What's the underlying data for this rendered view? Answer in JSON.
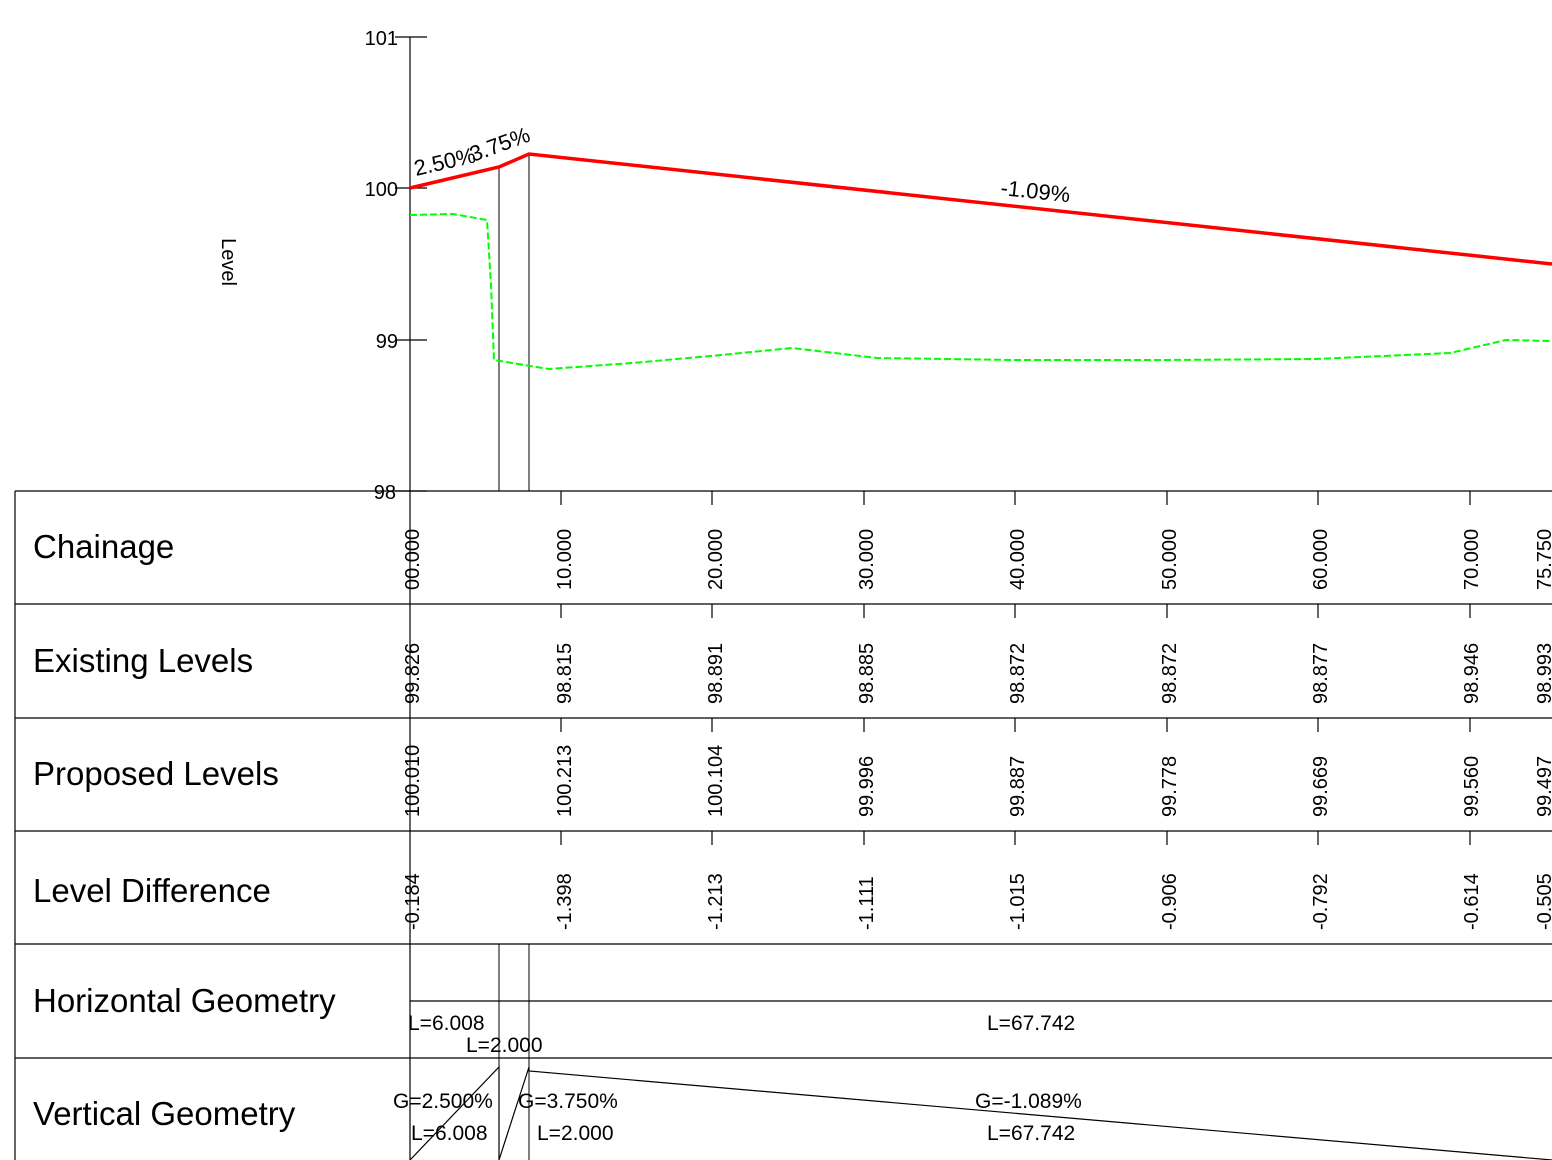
{
  "profile": {
    "y_axis": {
      "label": "Level",
      "ticks": [
        "98",
        "99",
        "100",
        "101"
      ],
      "range": [
        98,
        101
      ]
    },
    "grade_labels": [
      "2.50%",
      "3.75%",
      "-1.09%"
    ],
    "colors": {
      "proposed": "#ff0000",
      "existing": "#00ff00",
      "lines": "#000000"
    }
  },
  "table": {
    "rows": [
      {
        "title": "Chainage",
        "values": [
          "00.000",
          "10.000",
          "20.000",
          "30.000",
          "40.000",
          "50.000",
          "60.000",
          "70.000",
          "75.750"
        ]
      },
      {
        "title": "Existing Levels",
        "values": [
          "99.826",
          "98.815",
          "98.891",
          "98.885",
          "98.872",
          "98.872",
          "98.877",
          "98.946",
          "98.993"
        ]
      },
      {
        "title": "Proposed Levels",
        "values": [
          "100.010",
          "100.213",
          "100.104",
          "99.996",
          "99.887",
          "99.778",
          "99.669",
          "99.560",
          "99.497"
        ]
      },
      {
        "title": "Level Difference",
        "values": [
          "-0.184",
          "-1.398",
          "-1.213",
          "-1.111",
          "-1.015",
          "-0.906",
          "-0.792",
          "-0.614",
          "-0.505"
        ]
      },
      {
        "title": "Horizontal Geometry"
      },
      {
        "title": "Vertical Geometry"
      }
    ],
    "horizontal_geometry": [
      "L=6.008",
      "L=2.000",
      "L=67.742"
    ],
    "vertical_geometry": {
      "grades": [
        "G=2.500%",
        "G=3.750%",
        "G=-1.089%"
      ],
      "lengths": [
        "L=6.008",
        "L=2.000",
        "L=67.742"
      ]
    }
  },
  "chart_data": {
    "type": "line",
    "xlabel": "",
    "ylabel": "Level",
    "ylim": [
      98,
      101
    ],
    "series": [
      {
        "name": "Proposed Levels",
        "color": "#ff0000",
        "x": [
          0,
          6.008,
          8.008,
          75.75
        ],
        "y": [
          100.01,
          100.16,
          100.235,
          99.497
        ]
      },
      {
        "name": "Existing Levels",
        "color": "#00ff00",
        "x": [
          0,
          3,
          5.2,
          5.5,
          6.0,
          9.5,
          15,
          20,
          25.5,
          31,
          40,
          50,
          60,
          69,
          72.5,
          75.75
        ],
        "y": [
          99.826,
          99.83,
          99.79,
          99.35,
          98.87,
          98.815,
          98.84,
          98.891,
          98.94,
          98.885,
          98.872,
          98.872,
          98.877,
          98.946,
          99.0,
          98.993
        ]
      }
    ]
  }
}
